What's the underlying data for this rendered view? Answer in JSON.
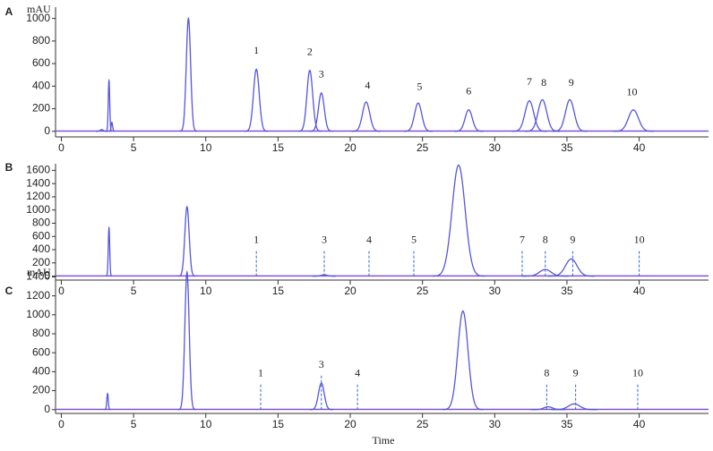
{
  "chart_data": [
    {
      "type": "chromatogram",
      "panel": "A",
      "ylabel": "mAU",
      "color": "#5555e0",
      "xlim": [
        -0.4,
        44.8
      ],
      "ylim": [
        -50,
        1100
      ],
      "xticks": [
        0,
        5,
        10,
        15,
        20,
        25,
        30,
        35,
        40
      ],
      "yticks": [
        0,
        200,
        400,
        600,
        800,
        1000
      ],
      "peaks": {
        "x": [
          2.8,
          3.3,
          3.5,
          8.8,
          13.5,
          17.2,
          18.0,
          21.1,
          24.7,
          28.2,
          32.4,
          33.3,
          35.2,
          39.6
        ],
        "values": [
          15,
          450,
          80,
          1000,
          550,
          540,
          340,
          260,
          250,
          190,
          270,
          280,
          280,
          190
        ],
        "widths": [
          0.1,
          0.05,
          0.05,
          0.15,
          0.2,
          0.2,
          0.2,
          0.25,
          0.25,
          0.25,
          0.3,
          0.3,
          0.3,
          0.35
        ]
      },
      "peak_labels": {
        "text": [
          "1",
          "2",
          "3",
          "4",
          "5",
          "6",
          "7",
          "8",
          "9",
          "10"
        ],
        "x": [
          13.5,
          17.2,
          18.0,
          21.2,
          24.8,
          28.2,
          32.4,
          33.4,
          35.3,
          39.5
        ]
      },
      "marker_lines": false
    },
    {
      "type": "chromatogram",
      "panel": "B",
      "color": "#5555e0",
      "xlim": [
        -0.4,
        44.8
      ],
      "ylim": [
        -60,
        1700
      ],
      "xticks": [
        0,
        5,
        10,
        15,
        20,
        25,
        30,
        35,
        40
      ],
      "yticks": [
        0,
        200,
        400,
        600,
        800,
        1000,
        1200,
        1400,
        1600
      ],
      "peaks": {
        "x": [
          3.3,
          8.7,
          18.2,
          27.5,
          33.5,
          35.3
        ],
        "values": [
          730,
          1050,
          20,
          1680,
          100,
          260
        ],
        "widths": [
          0.05,
          0.15,
          0.2,
          0.45,
          0.4,
          0.4
        ]
      },
      "peak_labels": {
        "text": [
          "1",
          "3",
          "4",
          "5",
          "7",
          "8",
          "9",
          "10"
        ],
        "x": [
          13.5,
          18.2,
          21.3,
          24.4,
          31.9,
          33.5,
          35.4,
          40.0
        ]
      },
      "marker_lines": true
    },
    {
      "type": "chromatogram",
      "panel": "C",
      "ylabel": "mAU",
      "xlabel": "Time",
      "color": "#5555e0",
      "xlim": [
        -0.4,
        44.8
      ],
      "ylim": [
        -40,
        1470
      ],
      "xticks": [
        0,
        5,
        10,
        15,
        20,
        25,
        30,
        35,
        40
      ],
      "yticks": [
        0,
        200,
        400,
        600,
        800,
        1000,
        1200,
        1400
      ],
      "peaks": {
        "x": [
          3.2,
          8.7,
          18.0,
          27.8,
          33.7,
          35.5
        ],
        "values": [
          170,
          1450,
          280,
          1040,
          30,
          60
        ],
        "widths": [
          0.05,
          0.15,
          0.2,
          0.35,
          0.3,
          0.4
        ]
      },
      "peak_labels": {
        "text": [
          "1",
          "3",
          "4",
          "8",
          "9",
          "10"
        ],
        "x": [
          13.8,
          18.0,
          20.5,
          33.6,
          35.6,
          39.9
        ]
      },
      "marker_lines": true
    }
  ]
}
